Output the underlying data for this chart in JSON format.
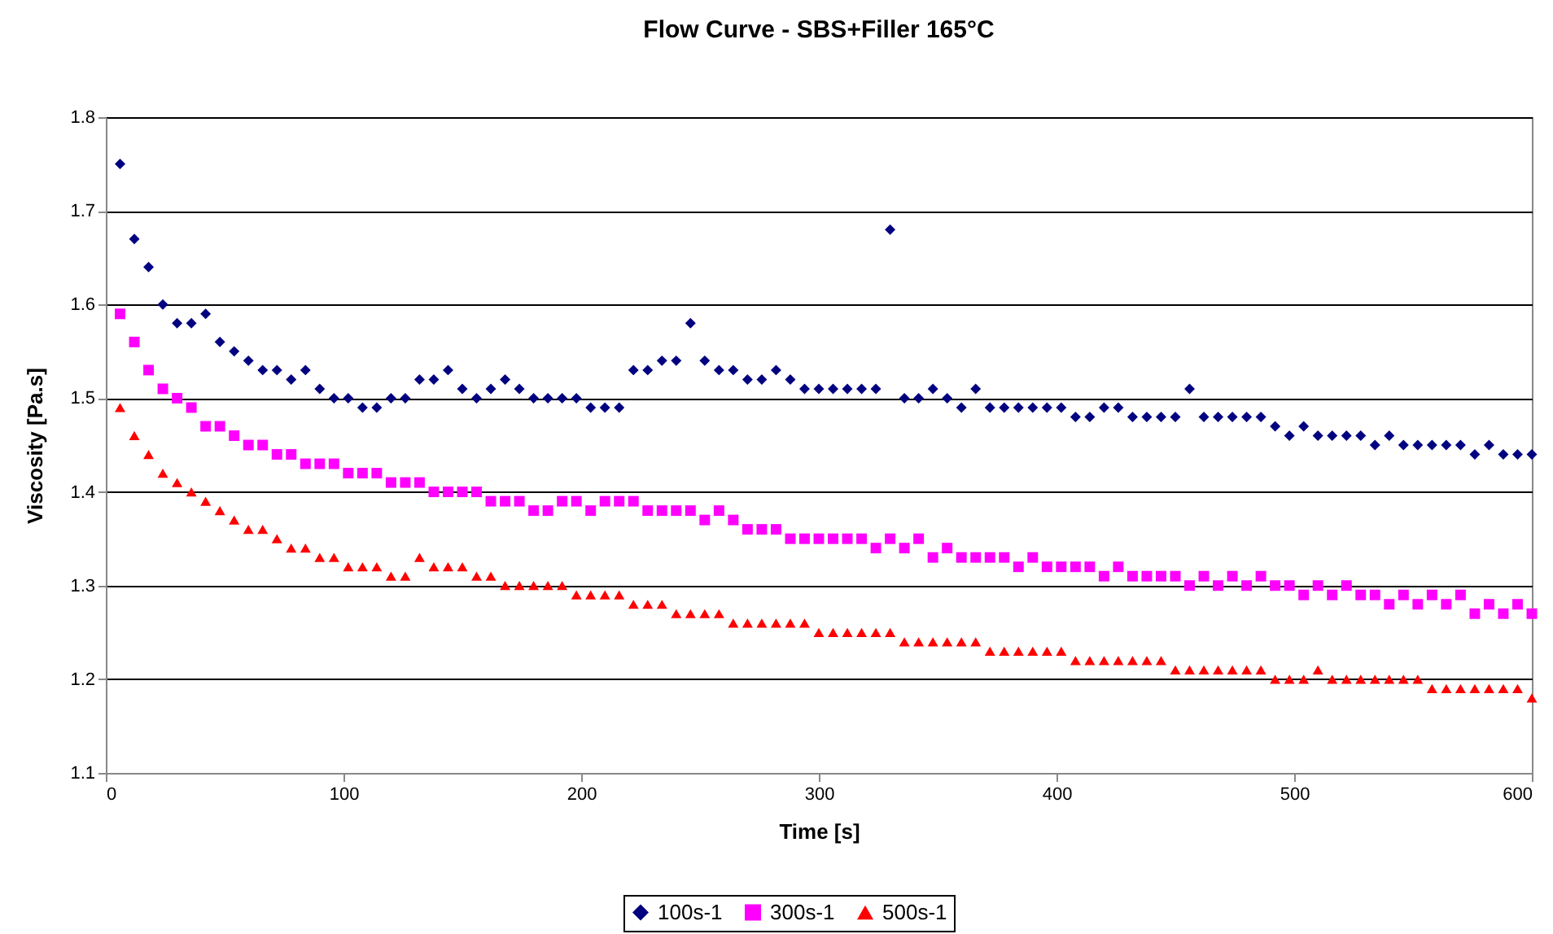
{
  "chart_data": {
    "type": "scatter",
    "title": "Flow Curve - SBS+Filler 165°C",
    "xlabel": "Time [s]",
    "ylabel": "Viscosity [Pa.s]",
    "x": [
      6,
      12,
      18,
      24,
      30,
      36,
      42,
      48,
      54,
      60,
      66,
      72,
      78,
      84,
      90,
      96,
      102,
      108,
      114,
      120,
      126,
      132,
      138,
      144,
      150,
      156,
      162,
      168,
      174,
      180,
      186,
      192,
      198,
      204,
      210,
      216,
      222,
      228,
      234,
      240,
      246,
      252,
      258,
      264,
      270,
      276,
      282,
      288,
      294,
      300,
      306,
      312,
      318,
      324,
      330,
      336,
      342,
      348,
      354,
      360,
      366,
      372,
      378,
      384,
      390,
      396,
      402,
      408,
      414,
      420,
      426,
      432,
      438,
      444,
      450,
      456,
      462,
      468,
      474,
      480,
      486,
      492,
      498,
      504,
      510,
      516,
      522,
      528,
      534,
      540,
      546,
      552,
      558,
      564,
      570,
      576,
      582,
      588,
      594,
      600
    ],
    "series": [
      {
        "name": "100s-1",
        "color": "#000080",
        "marker": "diamond",
        "values": [
          1.75,
          1.67,
          1.64,
          1.6,
          1.58,
          1.58,
          1.59,
          1.56,
          1.55,
          1.54,
          1.53,
          1.53,
          1.52,
          1.53,
          1.51,
          1.5,
          1.5,
          1.49,
          1.49,
          1.5,
          1.5,
          1.52,
          1.52,
          1.53,
          1.51,
          1.5,
          1.51,
          1.52,
          1.51,
          1.5,
          1.5,
          1.5,
          1.5,
          1.49,
          1.49,
          1.49,
          1.53,
          1.53,
          1.54,
          1.54,
          1.58,
          1.54,
          1.53,
          1.53,
          1.52,
          1.52,
          1.53,
          1.52,
          1.51,
          1.51,
          1.51,
          1.51,
          1.51,
          1.51,
          1.68,
          1.5,
          1.5,
          1.51,
          1.5,
          1.49,
          1.51,
          1.49,
          1.49,
          1.49,
          1.49,
          1.49,
          1.49,
          1.48,
          1.48,
          1.49,
          1.49,
          1.48,
          1.48,
          1.48,
          1.48,
          1.51,
          1.48,
          1.48,
          1.48,
          1.48,
          1.48,
          1.47,
          1.46,
          1.47,
          1.46,
          1.46,
          1.46,
          1.46,
          1.45,
          1.46,
          1.45,
          1.45,
          1.45,
          1.45,
          1.45,
          1.44,
          1.45,
          1.44,
          1.44,
          1.44
        ]
      },
      {
        "name": "300s-1",
        "color": "#ff00ff",
        "marker": "square",
        "values": [
          1.59,
          1.56,
          1.53,
          1.51,
          1.5,
          1.49,
          1.47,
          1.47,
          1.46,
          1.45,
          1.45,
          1.44,
          1.44,
          1.43,
          1.43,
          1.43,
          1.42,
          1.42,
          1.42,
          1.41,
          1.41,
          1.41,
          1.4,
          1.4,
          1.4,
          1.4,
          1.39,
          1.39,
          1.39,
          1.38,
          1.38,
          1.39,
          1.39,
          1.38,
          1.39,
          1.39,
          1.39,
          1.38,
          1.38,
          1.38,
          1.38,
          1.37,
          1.38,
          1.37,
          1.36,
          1.36,
          1.36,
          1.35,
          1.35,
          1.35,
          1.35,
          1.35,
          1.35,
          1.34,
          1.35,
          1.34,
          1.35,
          1.33,
          1.34,
          1.33,
          1.33,
          1.33,
          1.33,
          1.32,
          1.33,
          1.32,
          1.32,
          1.32,
          1.32,
          1.31,
          1.32,
          1.31,
          1.31,
          1.31,
          1.31,
          1.3,
          1.31,
          1.3,
          1.31,
          1.3,
          1.31,
          1.3,
          1.3,
          1.29,
          1.3,
          1.29,
          1.3,
          1.29,
          1.29,
          1.28,
          1.29,
          1.28,
          1.29,
          1.28,
          1.29,
          1.27,
          1.28,
          1.27,
          1.28,
          1.27
        ]
      },
      {
        "name": "500s-1",
        "color": "#ff0000",
        "marker": "triangle",
        "values": [
          1.49,
          1.46,
          1.44,
          1.42,
          1.41,
          1.4,
          1.39,
          1.38,
          1.37,
          1.36,
          1.36,
          1.35,
          1.34,
          1.34,
          1.33,
          1.33,
          1.32,
          1.32,
          1.32,
          1.31,
          1.31,
          1.33,
          1.32,
          1.32,
          1.32,
          1.31,
          1.31,
          1.3,
          1.3,
          1.3,
          1.3,
          1.3,
          1.29,
          1.29,
          1.29,
          1.29,
          1.28,
          1.28,
          1.28,
          1.27,
          1.27,
          1.27,
          1.27,
          1.26,
          1.26,
          1.26,
          1.26,
          1.26,
          1.26,
          1.25,
          1.25,
          1.25,
          1.25,
          1.25,
          1.25,
          1.24,
          1.24,
          1.24,
          1.24,
          1.24,
          1.24,
          1.23,
          1.23,
          1.23,
          1.23,
          1.23,
          1.23,
          1.22,
          1.22,
          1.22,
          1.22,
          1.22,
          1.22,
          1.22,
          1.21,
          1.21,
          1.21,
          1.21,
          1.21,
          1.21,
          1.21,
          1.2,
          1.2,
          1.2,
          1.21,
          1.2,
          1.2,
          1.2,
          1.2,
          1.2,
          1.2,
          1.2,
          1.19,
          1.19,
          1.19,
          1.19,
          1.19,
          1.19,
          1.19,
          1.18
        ]
      }
    ],
    "xlim": [
      0,
      600
    ],
    "xticks": [
      0,
      100,
      200,
      300,
      400,
      500,
      600
    ],
    "ylim": [
      1.1,
      1.8
    ],
    "yticks": [
      1.1,
      1.2,
      1.3,
      1.4,
      1.5,
      1.6,
      1.7,
      1.8
    ],
    "grid": "y",
    "legend": "bottom"
  }
}
